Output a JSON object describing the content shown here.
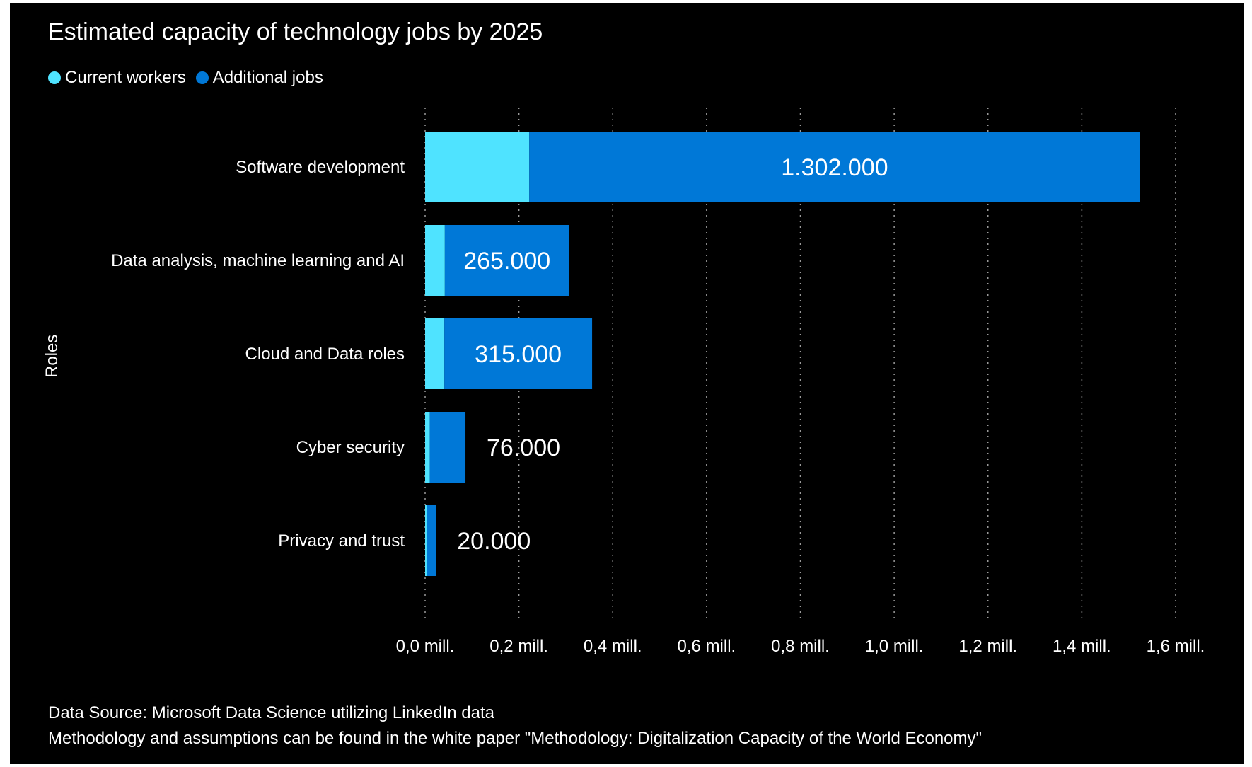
{
  "chart_data": {
    "type": "bar",
    "orientation": "horizontal",
    "stacked": true,
    "title": "Estimated capacity of technology jobs by 2025",
    "ylabel": "Roles",
    "xlabel": "",
    "categories": [
      "Software development",
      "Data analysis, machine learning and AI",
      "Cloud and Data roles",
      "Cyber security",
      "Privacy and trust"
    ],
    "series": [
      {
        "name": "Current workers",
        "color": "#4fe3ff",
        "values": [
          222000,
          42000,
          41000,
          10000,
          3000
        ]
      },
      {
        "name": "Additional jobs",
        "color": "#0078d7",
        "values": [
          1302000,
          265000,
          315000,
          76000,
          20000
        ]
      }
    ],
    "data_labels": [
      "1.302.000",
      "265.000",
      "315.000",
      "76.000",
      "20.000"
    ],
    "xlim": [
      0,
      1600000
    ],
    "xticks": [
      0,
      200000,
      400000,
      600000,
      800000,
      1000000,
      1200000,
      1400000,
      1600000
    ],
    "xtick_labels": [
      "0,0 mill.",
      "0,2 mill.",
      "0,4 mill.",
      "0,6 mill.",
      "0,8 mill.",
      "1,0 mill.",
      "1,2 mill.",
      "1,4 mill.",
      "1,6 mill."
    ],
    "grid": "vertical dotted",
    "legend_position": "top-left"
  },
  "source": {
    "line1": "Data Source: Microsoft Data Science utilizing LinkedIn data",
    "line2": "Methodology and assumptions can be found in the white paper \"Methodology: Digitalization Capacity of the World Economy\""
  },
  "colors": {
    "background": "#000000",
    "text": "#ffffff",
    "current_workers": "#4fe3ff",
    "additional_jobs": "#0078d7"
  }
}
